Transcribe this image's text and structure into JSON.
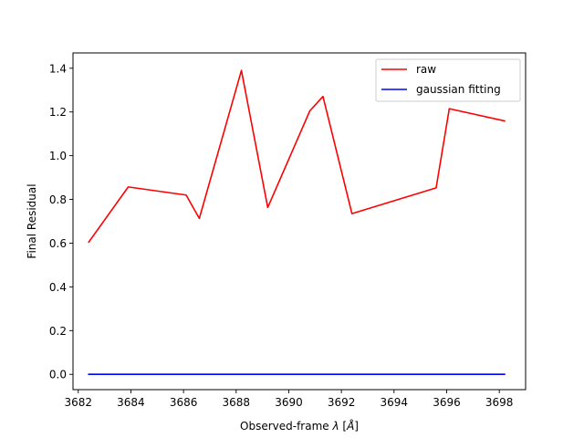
{
  "chart_data": {
    "type": "line",
    "title": "",
    "xlabel_prefix": "Observed-frame ",
    "xlabel_symbol": "λ",
    "xlabel_suffix": " [",
    "xlabel_unit": "Å",
    "xlabel_close": "]",
    "ylabel": "Final Residual",
    "xlim": [
      3681.8,
      3699.0
    ],
    "ylim": [
      -0.07,
      1.47
    ],
    "xticks": [
      3682,
      3684,
      3686,
      3688,
      3690,
      3692,
      3694,
      3696,
      3698
    ],
    "yticks": [
      0.0,
      0.2,
      0.4,
      0.6,
      0.8,
      1.0,
      1.2,
      1.4
    ],
    "ytick_labels": [
      "0.0",
      "0.2",
      "0.4",
      "0.6",
      "0.8",
      "1.0",
      "1.2",
      "1.4"
    ],
    "grid": false,
    "legend_position": "top-right",
    "series": [
      {
        "name": "raw",
        "color": "#ff0000",
        "x": [
          3682.4,
          3683.9,
          3686.1,
          3686.6,
          3688.2,
          3689.2,
          3690.8,
          3691.3,
          3692.4,
          3695.6,
          3696.1,
          3698.2
        ],
        "y": [
          0.605,
          0.857,
          0.82,
          0.713,
          1.39,
          0.763,
          1.205,
          1.271,
          0.735,
          0.853,
          1.215,
          1.159
        ]
      },
      {
        "name": "gaussian fitting",
        "color": "#0000ff",
        "x": [
          3682.4,
          3698.2
        ],
        "y": [
          0.0,
          0.0
        ]
      }
    ]
  }
}
